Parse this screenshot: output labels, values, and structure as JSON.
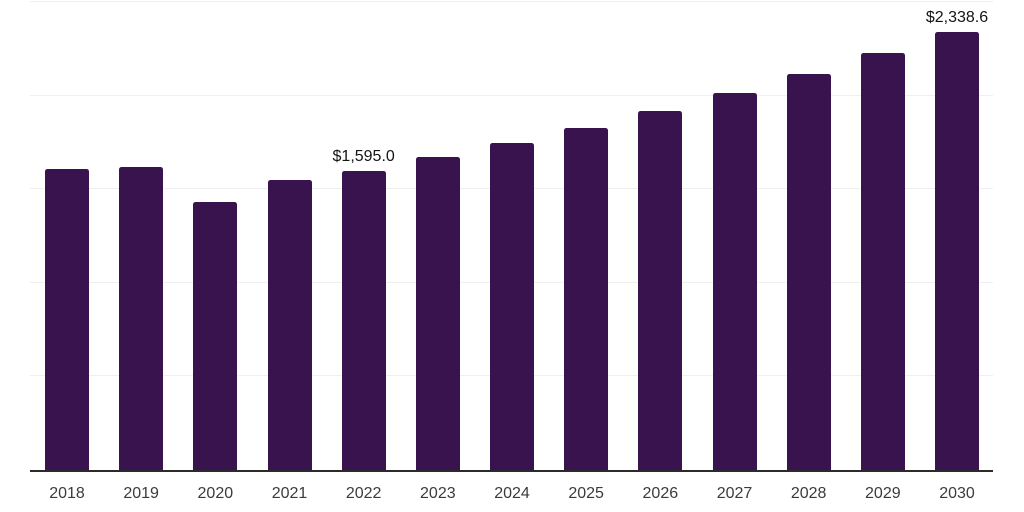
{
  "chart_data": {
    "type": "bar",
    "title": "",
    "xlabel": "",
    "ylabel": "",
    "categories": [
      "2018",
      "2019",
      "2020",
      "2021",
      "2022",
      "2023",
      "2024",
      "2025",
      "2026",
      "2027",
      "2028",
      "2029",
      "2030"
    ],
    "values": [
      1606,
      1620,
      1434,
      1547,
      1595.0,
      1670,
      1745,
      1825,
      1920,
      2012,
      2115,
      2229,
      2338.6
    ],
    "value_labels": [
      "",
      "",
      "",
      "",
      "$1,595.0",
      "",
      "",
      "",
      "",
      "",
      "",
      "",
      "$2,338.6"
    ],
    "ylim": [
      0,
      2500
    ],
    "gridline_values": [
      500,
      1000,
      1500,
      2000,
      2500
    ],
    "grid": "horizontal",
    "legend": false,
    "y_axis_ticks_shown": false,
    "colors": {
      "bar": "#38134E",
      "grid_line": "#efefef",
      "axis_line": "#2b2b2b",
      "tick_label": "#3b3b3b",
      "value_label": "#141414",
      "background": "#ffffff"
    }
  }
}
